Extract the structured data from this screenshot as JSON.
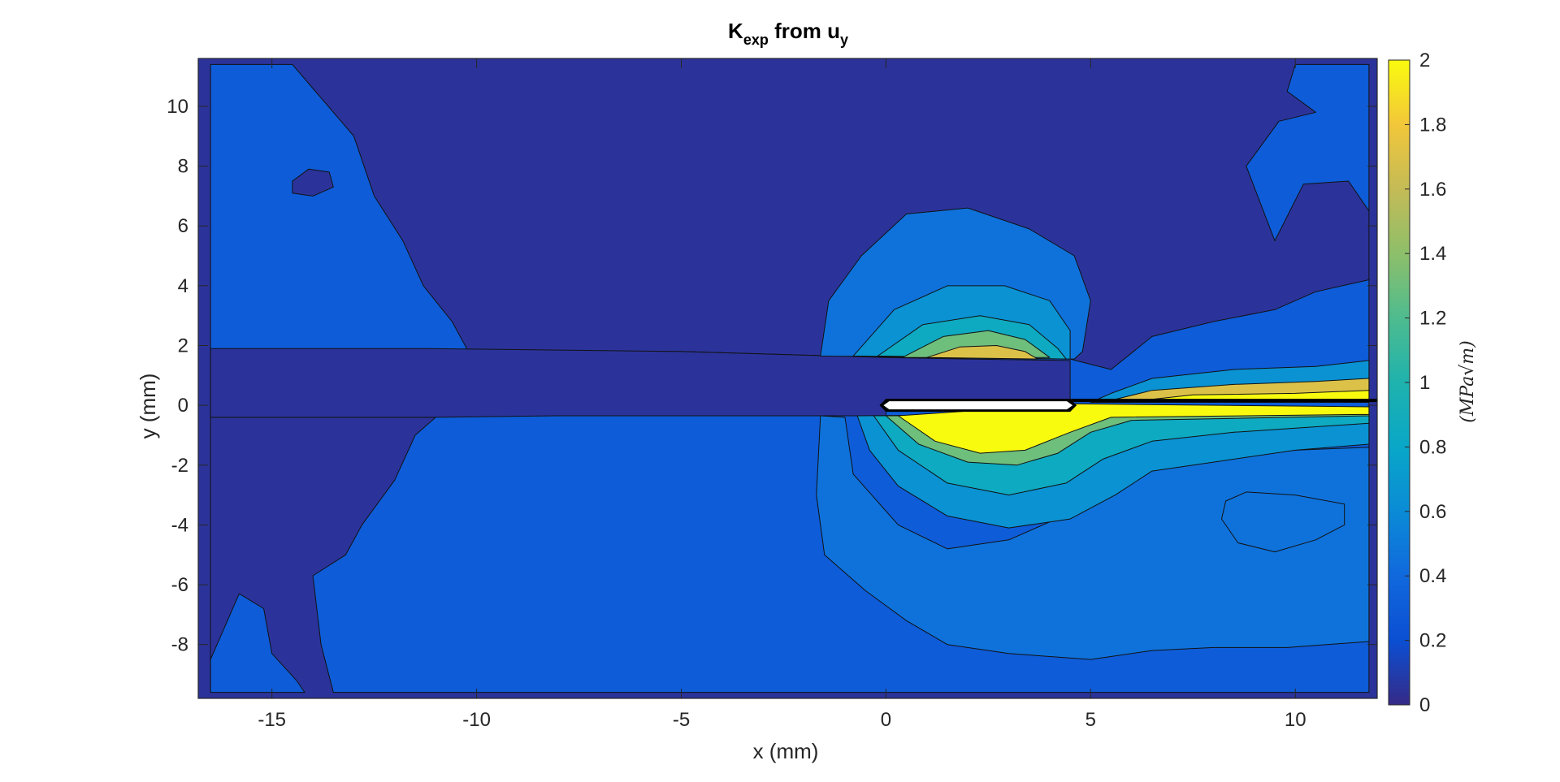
{
  "chart_data": {
    "type": "heatmap",
    "title": {
      "main": "K",
      "main_sub": "exp",
      "middle": " from u",
      "middle_sub": "y"
    },
    "xlabel": "x (mm)",
    "ylabel": "y (mm)",
    "xlim": [
      -16.8,
      12
    ],
    "ylim": [
      -9.8,
      11.6
    ],
    "xticks": [
      -15,
      -10,
      -5,
      0,
      5,
      10
    ],
    "yticks": [
      -8,
      -6,
      -4,
      -2,
      0,
      2,
      4,
      6,
      8,
      10
    ],
    "colorbar": {
      "label": "(MPa√m)",
      "range": [
        0,
        2
      ],
      "ticks": [
        0,
        0.2,
        0.4,
        0.6,
        0.8,
        1,
        1.2,
        1.4,
        1.6,
        1.8,
        2
      ],
      "colormap": "parula"
    },
    "contour_levels": [
      0,
      0.2,
      0.4,
      0.6,
      0.8,
      1.0,
      1.2,
      1.4,
      1.6,
      1.8,
      2.0
    ],
    "regions": [
      {
        "name": "frame",
        "value": 0.05,
        "points": [
          [
            -16.8,
            11.6
          ],
          [
            12,
            11.6
          ],
          [
            12,
            -9.8
          ],
          [
            -16.8,
            -9.8
          ]
        ]
      },
      {
        "name": "main-field",
        "value": 0.3,
        "points": [
          [
            -16.5,
            11.4
          ],
          [
            -14.5,
            11.4
          ],
          [
            -13,
            9
          ],
          [
            -12.5,
            7
          ],
          [
            -11.8,
            5.5
          ],
          [
            -11.3,
            4
          ],
          [
            -10.6,
            2.8
          ],
          [
            -10.2,
            1.8
          ],
          [
            -5,
            1.8
          ],
          [
            0,
            1.6
          ],
          [
            4.5,
            1.55
          ],
          [
            5.5,
            1.2
          ],
          [
            6.5,
            2.3
          ],
          [
            8,
            2.8
          ],
          [
            9.5,
            3.2
          ],
          [
            10.5,
            3.8
          ],
          [
            11.8,
            4.2
          ],
          [
            11.8,
            6.5
          ],
          [
            11.3,
            7.5
          ],
          [
            10.2,
            7.4
          ],
          [
            9.5,
            5.5
          ],
          [
            8.8,
            8
          ],
          [
            9.6,
            9.5
          ],
          [
            10.5,
            9.8
          ],
          [
            9.8,
            10.5
          ],
          [
            10,
            11.4
          ],
          [
            11.8,
            11.4
          ],
          [
            11.8,
            -9.6
          ],
          [
            -13.5,
            -9.6
          ],
          [
            -13.8,
            -8
          ],
          [
            -14,
            -5.7
          ],
          [
            -13.2,
            -5
          ],
          [
            -12.8,
            -4
          ],
          [
            -12,
            -2.5
          ],
          [
            -11.5,
            -1
          ],
          [
            -11,
            -0.4
          ],
          [
            -16.5,
            -0.4
          ],
          [
            -16.5,
            -9.6
          ]
        ]
      },
      {
        "name": "crack-band",
        "value": 0.05,
        "points": [
          [
            -16.5,
            1.9
          ],
          [
            -11.2,
            1.9
          ],
          [
            -5,
            1.8
          ],
          [
            0,
            1.6
          ],
          [
            2,
            1.55
          ],
          [
            4.5,
            1.5
          ],
          [
            4.5,
            0.2
          ],
          [
            0,
            0
          ],
          [
            0,
            -0.35
          ],
          [
            -8,
            -0.35
          ],
          [
            -11,
            -0.4
          ],
          [
            -16.5,
            -0.4
          ]
        ]
      },
      {
        "name": "lobe-0.4",
        "value": 0.45,
        "points": [
          [
            -1.6,
            1.65
          ],
          [
            -1.4,
            3.5
          ],
          [
            -0.6,
            5
          ],
          [
            0.5,
            6.4
          ],
          [
            2,
            6.6
          ],
          [
            3.5,
            5.9
          ],
          [
            4.6,
            5
          ],
          [
            5,
            3.5
          ],
          [
            4.8,
            1.8
          ],
          [
            4.6,
            1.55
          ],
          [
            2,
            1.6
          ]
        ]
      },
      {
        "name": "lobe-0.6",
        "value": 0.65,
        "points": [
          [
            -0.8,
            1.65
          ],
          [
            0.2,
            3.2
          ],
          [
            1.5,
            4
          ],
          [
            2.9,
            4
          ],
          [
            4,
            3.5
          ],
          [
            4.5,
            2.5
          ],
          [
            4.5,
            1.55
          ]
        ]
      },
      {
        "name": "lobe-0.8",
        "value": 0.85,
        "points": [
          [
            -0.2,
            1.65
          ],
          [
            0.9,
            2.7
          ],
          [
            2.3,
            3
          ],
          [
            3.5,
            2.7
          ],
          [
            4.2,
            1.9
          ],
          [
            4.4,
            1.55
          ]
        ]
      },
      {
        "name": "lobe-1.2",
        "value": 1.3,
        "points": [
          [
            0.4,
            1.6
          ],
          [
            1.4,
            2.3
          ],
          [
            2.5,
            2.5
          ],
          [
            3.4,
            2.2
          ],
          [
            4,
            1.6
          ]
        ]
      },
      {
        "name": "lobe-1.6",
        "value": 1.7,
        "points": [
          [
            1,
            1.6
          ],
          [
            1.8,
            1.95
          ],
          [
            2.7,
            2
          ],
          [
            3.4,
            1.8
          ],
          [
            3.7,
            1.55
          ]
        ]
      },
      {
        "name": "lower-0.4",
        "value": 0.45,
        "points": [
          [
            -1.6,
            -0.35
          ],
          [
            -1.7,
            -3
          ],
          [
            -1.5,
            -5
          ],
          [
            -0.5,
            -6.2
          ],
          [
            0.5,
            -7.2
          ],
          [
            1.5,
            -8
          ],
          [
            3,
            -8.3
          ],
          [
            5,
            -8.5
          ],
          [
            6.5,
            -8.2
          ],
          [
            8,
            -8.1
          ],
          [
            9.8,
            -8.1
          ],
          [
            11.8,
            -7.9
          ],
          [
            11.8,
            -1.4
          ],
          [
            10,
            -1.5
          ],
          [
            8,
            -1.8
          ],
          [
            6.5,
            -2
          ],
          [
            5.5,
            -2.5
          ],
          [
            4.5,
            -3.6
          ],
          [
            3,
            -4.5
          ],
          [
            1.5,
            -4.8
          ],
          [
            0.3,
            -4
          ],
          [
            -0.8,
            -2.3
          ],
          [
            -1,
            -0.4
          ]
        ]
      },
      {
        "name": "lower-0.6",
        "value": 0.65,
        "points": [
          [
            -0.7,
            -0.35
          ],
          [
            -0.4,
            -1.5
          ],
          [
            0.3,
            -2.7
          ],
          [
            1.5,
            -3.7
          ],
          [
            3,
            -4.1
          ],
          [
            4.5,
            -3.8
          ],
          [
            5.6,
            -3
          ],
          [
            6.5,
            -2.2
          ],
          [
            8,
            -1.9
          ],
          [
            10,
            -1.5
          ],
          [
            11.8,
            -1.3
          ],
          [
            11.8,
            -0.3
          ],
          [
            4.5,
            -0.3
          ]
        ]
      },
      {
        "name": "lower-0.8",
        "value": 0.85,
        "points": [
          [
            -0.3,
            -0.35
          ],
          [
            0.3,
            -1.5
          ],
          [
            1.5,
            -2.6
          ],
          [
            3,
            -3
          ],
          [
            4.4,
            -2.6
          ],
          [
            5.3,
            -1.8
          ],
          [
            6.5,
            -1.2
          ],
          [
            8.5,
            -0.9
          ],
          [
            11.8,
            -0.6
          ],
          [
            11.8,
            -0.3
          ]
        ]
      },
      {
        "name": "lower-1.2",
        "value": 1.3,
        "points": [
          [
            0,
            -0.35
          ],
          [
            0.8,
            -1.3
          ],
          [
            2,
            -1.9
          ],
          [
            3.2,
            -2
          ],
          [
            4.2,
            -1.6
          ],
          [
            5,
            -0.9
          ],
          [
            6,
            -0.5
          ],
          [
            11.8,
            -0.35
          ],
          [
            11.8,
            -0.3
          ]
        ]
      },
      {
        "name": "lower-2.0",
        "value": 2.0,
        "points": [
          [
            0.3,
            -0.35
          ],
          [
            1.2,
            -1.2
          ],
          [
            2.3,
            -1.6
          ],
          [
            3.4,
            -1.5
          ],
          [
            4.5,
            -0.9
          ],
          [
            5.5,
            -0.4
          ],
          [
            11.8,
            -0.3
          ],
          [
            11.8,
            -0.05
          ],
          [
            4.6,
            0.05
          ]
        ]
      },
      {
        "name": "upper-crack-tail",
        "value": 0.65,
        "points": [
          [
            5,
            0.1
          ],
          [
            5.5,
            0.4
          ],
          [
            6.5,
            0.9
          ],
          [
            8.5,
            1.2
          ],
          [
            10.5,
            1.3
          ],
          [
            11.8,
            1.5
          ],
          [
            11.8,
            0.1
          ]
        ]
      },
      {
        "name": "upper-crack-tail-hi",
        "value": 1.7,
        "points": [
          [
            5.3,
            0.1
          ],
          [
            6.5,
            0.5
          ],
          [
            8.5,
            0.7
          ],
          [
            10.5,
            0.8
          ],
          [
            11.8,
            0.9
          ],
          [
            11.8,
            0.1
          ]
        ]
      },
      {
        "name": "upper-crack-tail-max",
        "value": 2.0,
        "points": [
          [
            5.8,
            0.1
          ],
          [
            7.5,
            0.35
          ],
          [
            10,
            0.4
          ],
          [
            11.8,
            0.5
          ],
          [
            11.8,
            0.1
          ]
        ]
      },
      {
        "name": "lower-island",
        "value": 0.45,
        "points": [
          [
            8.3,
            -3.2
          ],
          [
            8.8,
            -2.9
          ],
          [
            10,
            -3
          ],
          [
            11.2,
            -3.3
          ],
          [
            11.2,
            -4
          ],
          [
            10.5,
            -4.5
          ],
          [
            9.5,
            -4.9
          ],
          [
            8.6,
            -4.6
          ],
          [
            8.2,
            -3.8
          ]
        ]
      },
      {
        "name": "upper-left-island",
        "value": 0.05,
        "points": [
          [
            -14.5,
            7.5
          ],
          [
            -14.1,
            7.9
          ],
          [
            -13.6,
            7.8
          ],
          [
            -13.5,
            7.3
          ],
          [
            -14,
            7
          ],
          [
            -14.5,
            7.1
          ]
        ]
      },
      {
        "name": "bottom-left-patch",
        "value": 0.3,
        "points": [
          [
            -16.5,
            -8.5
          ],
          [
            -15.8,
            -6.3
          ],
          [
            -15.2,
            -6.8
          ],
          [
            -15,
            -8.3
          ],
          [
            -14.4,
            -9.2
          ],
          [
            -14.2,
            -9.6
          ],
          [
            -16.5,
            -9.6
          ]
        ]
      }
    ],
    "crack_segment": {
      "x": [
        0,
        4.5
      ],
      "y": 0
    }
  }
}
